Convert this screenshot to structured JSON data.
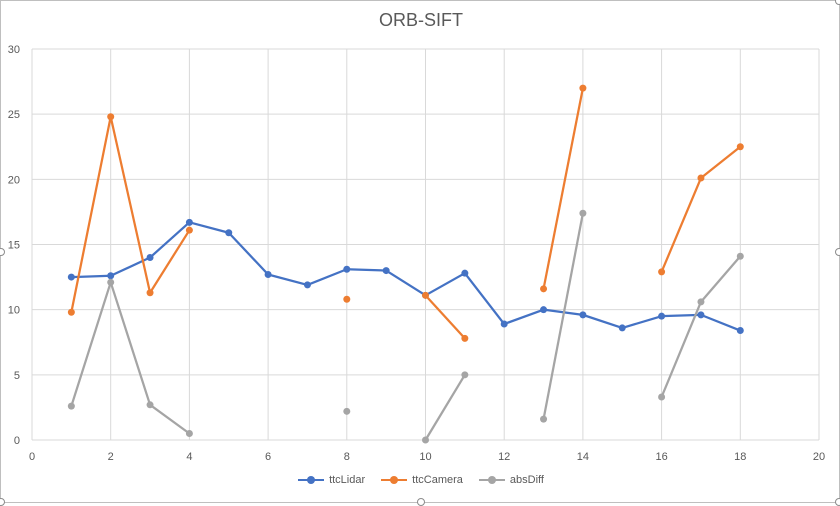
{
  "chart_data": {
    "type": "line",
    "title": "ORB-SIFT",
    "xlabel": "",
    "ylabel": "",
    "xlim": [
      0,
      20
    ],
    "ylim": [
      0,
      30
    ],
    "xticks": [
      0,
      2,
      4,
      6,
      8,
      10,
      12,
      14,
      16,
      18,
      20
    ],
    "yticks": [
      0,
      5,
      10,
      15,
      20,
      25,
      30
    ],
    "grid": true,
    "legend_position": "bottom",
    "series": [
      {
        "name": "ttcLidar",
        "color": "#4472c4",
        "x": [
          1,
          2,
          3,
          4,
          5,
          6,
          7,
          8,
          9,
          10,
          11,
          12,
          13,
          14,
          15,
          16,
          17,
          18
        ],
        "y": [
          12.5,
          12.6,
          14.0,
          16.7,
          15.9,
          12.7,
          11.9,
          13.1,
          13.0,
          11.1,
          12.8,
          8.9,
          10.0,
          9.6,
          8.6,
          9.5,
          9.6,
          8.4
        ]
      },
      {
        "name": "ttcCamera",
        "color": "#ed7d31",
        "x": [
          1,
          2,
          3,
          4,
          5,
          6,
          7,
          8,
          9,
          10,
          11,
          12,
          13,
          14,
          15,
          16,
          17,
          18
        ],
        "y": [
          9.8,
          24.8,
          11.3,
          16.1,
          null,
          null,
          null,
          10.8,
          null,
          11.1,
          7.8,
          null,
          11.6,
          27.0,
          null,
          12.9,
          20.1,
          22.5
        ]
      },
      {
        "name": "absDiff",
        "color": "#a5a5a5",
        "x": [
          1,
          2,
          3,
          4,
          5,
          6,
          7,
          8,
          9,
          10,
          11,
          12,
          13,
          14,
          15,
          16,
          17,
          18
        ],
        "y": [
          2.6,
          12.1,
          2.7,
          0.5,
          null,
          null,
          null,
          2.2,
          null,
          0.0,
          5.0,
          null,
          1.6,
          17.4,
          null,
          3.3,
          10.6,
          14.1
        ]
      }
    ]
  }
}
